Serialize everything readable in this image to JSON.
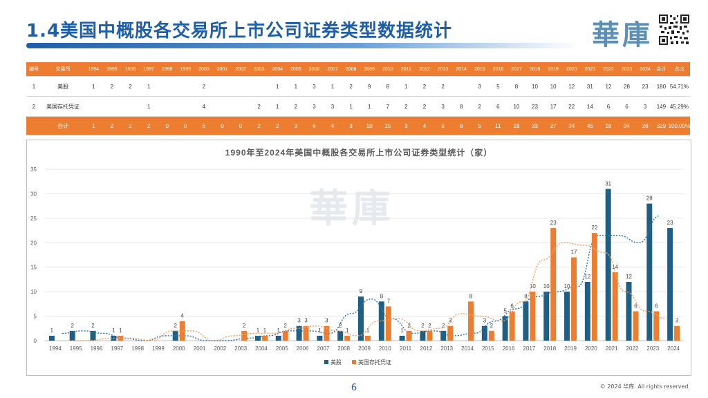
{
  "page": {
    "title": "1.4美国中概股各交易所上市公司证券类型数据统计",
    "brand": "華庫",
    "page_number": "6",
    "copyright": "© 2024 华库. All rights reserved."
  },
  "table": {
    "headers": [
      "编号",
      "交易所",
      "1994",
      "1995",
      "1996",
      "1997",
      "1998",
      "1999",
      "2000",
      "2001",
      "2002",
      "2003",
      "2004",
      "2005",
      "2006",
      "2007",
      "2008",
      "2009",
      "2010",
      "2011",
      "2012",
      "2013",
      "2014",
      "2015",
      "2016",
      "2017",
      "2018",
      "2019",
      "2020",
      "2021",
      "2022",
      "2023",
      "2024",
      "合计",
      "占比"
    ],
    "rows": [
      [
        "1",
        "美股",
        "1",
        "2",
        "2",
        "1",
        "",
        "",
        "2",
        "",
        "",
        "",
        "1",
        "1",
        "3",
        "1",
        "2",
        "9",
        "8",
        "1",
        "2",
        "2",
        "",
        "3",
        "5",
        "8",
        "10",
        "10",
        "12",
        "31",
        "12",
        "28",
        "23",
        "180",
        "54.71%"
      ],
      [
        "2",
        "美国存托凭证",
        "",
        "",
        "",
        "1",
        "",
        "",
        "4",
        "",
        "",
        "2",
        "1",
        "2",
        "3",
        "3",
        "1",
        "1",
        "7",
        "2",
        "2",
        "3",
        "8",
        "2",
        "6",
        "10",
        "23",
        "17",
        "22",
        "14",
        "6",
        "6",
        "3",
        "149",
        "45.29%"
      ]
    ],
    "total": [
      "",
      "合计",
      "1",
      "2",
      "2",
      "2",
      "0",
      "0",
      "6",
      "0",
      "0",
      "2",
      "2",
      "3",
      "6",
      "4",
      "3",
      "10",
      "15",
      "3",
      "4",
      "5",
      "8",
      "5",
      "11",
      "18",
      "33",
      "27",
      "34",
      "45",
      "18",
      "34",
      "26",
      "329",
      "100.00%"
    ]
  },
  "chart_data": {
    "type": "bar",
    "title": "1990年至2024年美国中概股各交易所上市公司证券类型统计（家）",
    "watermark": "華庫",
    "categories": [
      "1994",
      "1995",
      "1996",
      "1997",
      "1998",
      "1999",
      "2000",
      "2001",
      "2002",
      "2003",
      "2004",
      "2005",
      "2006",
      "2007",
      "2008",
      "2009",
      "2010",
      "2011",
      "2012",
      "2013",
      "2014",
      "2015",
      "2016",
      "2017",
      "2018",
      "2019",
      "2020",
      "2021",
      "2022",
      "2023",
      "2024"
    ],
    "series": [
      {
        "name": "美股",
        "color": "#1f5f84",
        "values": [
          1,
          2,
          2,
          1,
          0,
          0,
          2,
          0,
          0,
          0,
          1,
          1,
          3,
          1,
          2,
          9,
          8,
          1,
          2,
          2,
          0,
          3,
          5,
          8,
          10,
          10,
          12,
          31,
          12,
          28,
          23
        ]
      },
      {
        "name": "美国存托凭证",
        "color": "#ed7d31",
        "values": [
          0,
          0,
          0,
          1,
          0,
          0,
          4,
          0,
          0,
          2,
          1,
          2,
          3,
          3,
          1,
          1,
          7,
          2,
          2,
          3,
          8,
          2,
          6,
          10,
          23,
          17,
          22,
          14,
          6,
          6,
          3
        ]
      }
    ],
    "trendlines": "dotted moving averages per series",
    "ylim": [
      0,
      35
    ],
    "yticks": [
      0,
      5,
      10,
      15,
      20,
      25,
      30,
      35
    ],
    "grid": true,
    "legend": "bottom-center"
  }
}
